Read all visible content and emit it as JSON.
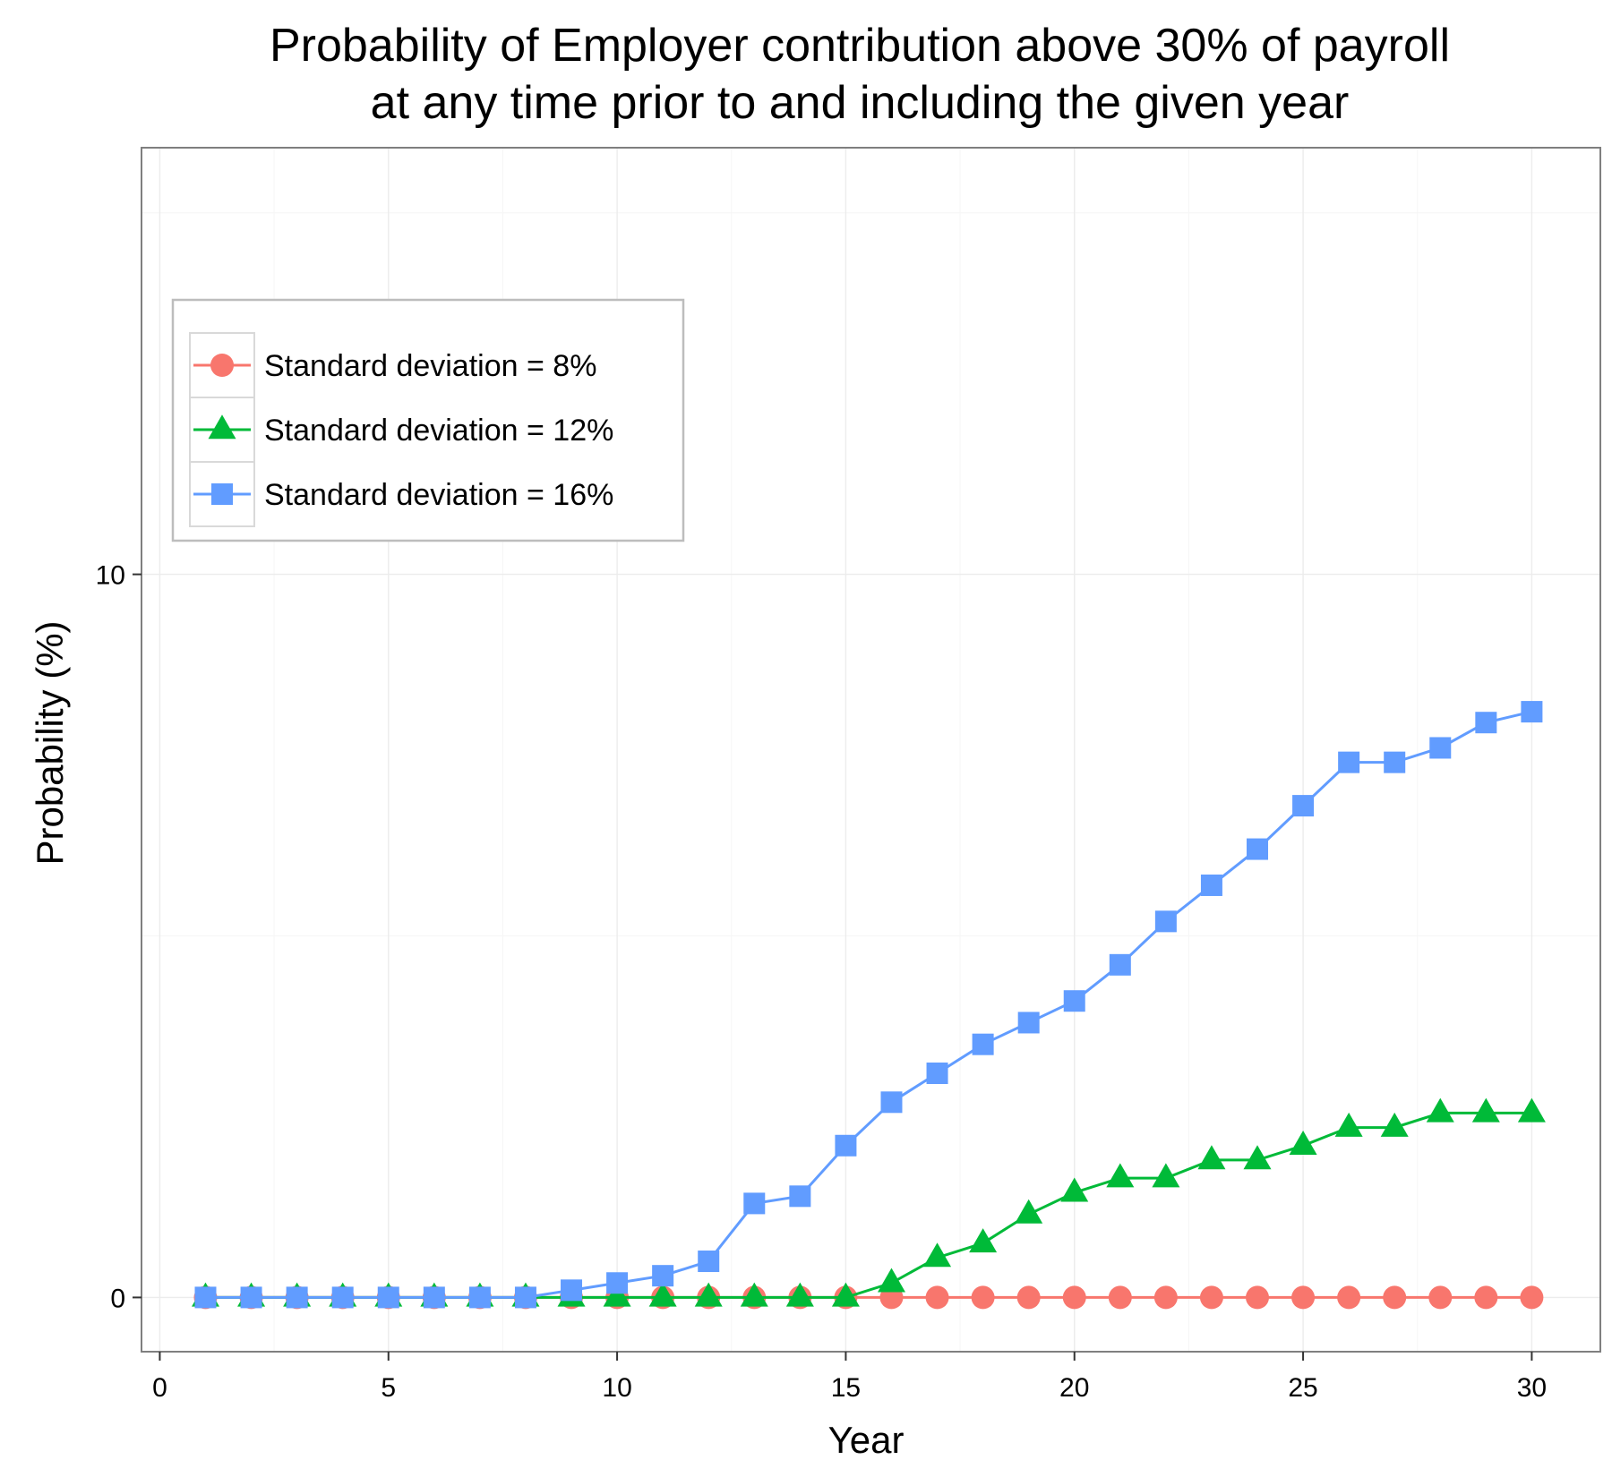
{
  "chart_data": {
    "type": "line",
    "title": "Probability of Employer contribution above 30% of payroll",
    "subtitle": "at any time prior to and including the given year",
    "xlabel": "Year",
    "ylabel": "Probability (%)",
    "xlim": [
      -0.4,
      31.5
    ],
    "ylim": [
      -0.75,
      15.9
    ],
    "x_ticks": [
      0,
      5,
      10,
      15,
      20,
      25,
      30
    ],
    "y_ticks": [
      0,
      10
    ],
    "grid": true,
    "legend_placement": "top-left (inside)",
    "x": [
      1,
      2,
      3,
      4,
      5,
      6,
      7,
      8,
      9,
      10,
      11,
      12,
      13,
      14,
      15,
      16,
      17,
      18,
      19,
      20,
      21,
      22,
      23,
      24,
      25,
      26,
      27,
      28,
      29,
      30
    ],
    "series": [
      {
        "name": "Standard deviation = 8%",
        "color": "#F8766D",
        "marker": "circle",
        "values": [
          0,
          0,
          0,
          0,
          0,
          0,
          0,
          0,
          0,
          0,
          0,
          0,
          0,
          0,
          0,
          0,
          0,
          0,
          0,
          0,
          0,
          0,
          0,
          0,
          0,
          0,
          0,
          0,
          0,
          0
        ]
      },
      {
        "name": "Standard deviation = 12%",
        "color": "#00BA38",
        "marker": "triangle",
        "values": [
          0,
          0,
          0,
          0,
          0,
          0,
          0,
          0,
          0,
          0,
          0,
          0,
          0,
          0,
          0,
          0.2,
          0.55,
          0.75,
          1.15,
          1.45,
          1.65,
          1.65,
          1.9,
          1.9,
          2.1,
          2.35,
          2.35,
          2.55,
          2.55,
          2.55
        ]
      },
      {
        "name": "Standard deviation = 16%",
        "color": "#619CFF",
        "marker": "square",
        "values": [
          0,
          0,
          0,
          0,
          0,
          0,
          0,
          0,
          0.1,
          0.2,
          0.3,
          0.5,
          1.3,
          1.4,
          2.1,
          2.7,
          3.1,
          3.5,
          3.8,
          4.1,
          4.6,
          5.2,
          5.7,
          6.2,
          6.8,
          7.4,
          7.4,
          7.6,
          7.95,
          8.1
        ]
      }
    ]
  }
}
